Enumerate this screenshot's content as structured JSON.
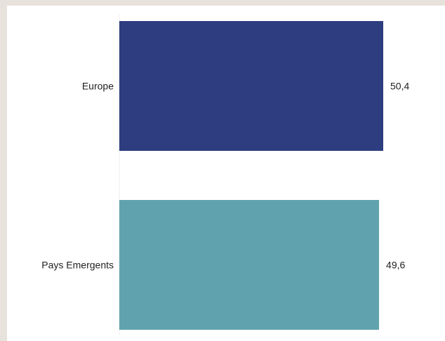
{
  "chart_data": {
    "type": "bar",
    "orientation": "horizontal",
    "categories": [
      "Europe",
      "Pays Emergents"
    ],
    "values": [
      50.4,
      49.6
    ],
    "value_labels": [
      "50,4",
      "49,6"
    ],
    "colors": [
      "#2e3d7f",
      "#60a3ae"
    ],
    "title": "",
    "xlabel": "",
    "ylabel": "",
    "xlim": [
      0,
      50.4
    ],
    "grid": false,
    "legend": "none"
  }
}
